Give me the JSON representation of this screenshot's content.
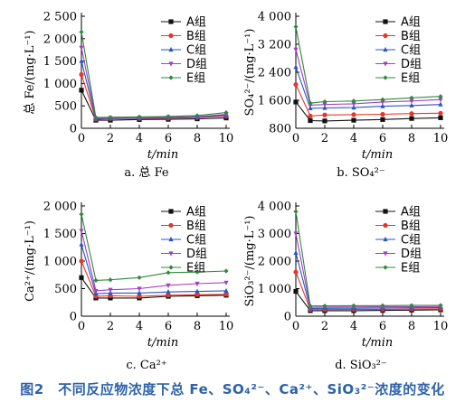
{
  "figure_caption": "图2　不同反应物浓度下总 Fe、SO₄²⁻、Ca²⁺、SiO₃²⁻浓度的变化",
  "series_colors": [
    "#111111",
    "#e8372a",
    "#2b55c6",
    "#a43fc0",
    "#2f8a3c"
  ],
  "chart_data": [
    {
      "type": "line",
      "caption": "a. 总 Fe",
      "xlabel": "t/min",
      "ylabel": "总 Fe/(mg·L⁻¹)",
      "xlim": [
        0,
        10
      ],
      "ylim": [
        0,
        2500
      ],
      "xticks": [
        "0",
        "2",
        "4",
        "6",
        "8",
        "10"
      ],
      "yticks": [
        "0",
        "500",
        "1 000",
        "1 500",
        "2 000",
        "2 500"
      ],
      "x": [
        0,
        1,
        2,
        4,
        6,
        8,
        10
      ],
      "series": [
        {
          "name": "A组",
          "values": [
            850,
            180,
            180,
            195,
            200,
            210,
            230
          ]
        },
        {
          "name": "B组",
          "values": [
            1200,
            200,
            215,
            220,
            225,
            240,
            270
          ]
        },
        {
          "name": "C组",
          "values": [
            1500,
            210,
            220,
            225,
            235,
            250,
            290
          ]
        },
        {
          "name": "D组",
          "values": [
            1800,
            220,
            230,
            235,
            245,
            260,
            310
          ]
        },
        {
          "name": "E组",
          "values": [
            2150,
            240,
            245,
            255,
            265,
            285,
            350
          ]
        }
      ]
    },
    {
      "type": "line",
      "caption": "b. SO₄²⁻",
      "xlabel": "t/min",
      "ylabel": "SO₄²⁻/(mg·L⁻¹)",
      "xlim": [
        0,
        10
      ],
      "ylim": [
        800,
        4000
      ],
      "xticks": [
        "0",
        "2",
        "4",
        "6",
        "8",
        "10"
      ],
      "yticks": [
        "800",
        "1 600",
        "2 400",
        "3 200",
        "4 000"
      ],
      "x": [
        0,
        1,
        2,
        4,
        6,
        8,
        10
      ],
      "series": [
        {
          "name": "A组",
          "values": [
            1550,
            1020,
            1010,
            1030,
            1050,
            1080,
            1100
          ]
        },
        {
          "name": "B组",
          "values": [
            2050,
            1150,
            1180,
            1190,
            1200,
            1220,
            1230
          ]
        },
        {
          "name": "C组",
          "values": [
            2550,
            1370,
            1380,
            1390,
            1430,
            1450,
            1480
          ]
        },
        {
          "name": "D组",
          "values": [
            3050,
            1460,
            1480,
            1500,
            1550,
            1580,
            1620
          ]
        },
        {
          "name": "E组",
          "values": [
            3700,
            1520,
            1560,
            1580,
            1620,
            1670,
            1710
          ]
        }
      ]
    },
    {
      "type": "line",
      "caption": "c. Ca²⁺",
      "xlabel": "t/min",
      "ylabel": "Ca²⁺/(mg·L⁻¹)",
      "xlim": [
        0,
        10
      ],
      "ylim": [
        0,
        2000
      ],
      "xticks": [
        "0",
        "2",
        "4",
        "6",
        "8",
        "10"
      ],
      "yticks": [
        "0",
        "500",
        "1 000",
        "1 500",
        "2 000"
      ],
      "x": [
        0,
        1,
        2,
        4,
        6,
        8,
        10
      ],
      "series": [
        {
          "name": "A组",
          "values": [
            700,
            330,
            330,
            330,
            360,
            370,
            380
          ]
        },
        {
          "name": "B组",
          "values": [
            1000,
            360,
            370,
            360,
            380,
            390,
            395
          ]
        },
        {
          "name": "C组",
          "values": [
            1300,
            410,
            420,
            420,
            440,
            450,
            460
          ]
        },
        {
          "name": "D组",
          "values": [
            1550,
            460,
            480,
            500,
            560,
            590,
            610
          ]
        },
        {
          "name": "E组",
          "values": [
            1850,
            650,
            660,
            700,
            790,
            800,
            820
          ]
        }
      ]
    },
    {
      "type": "line",
      "caption": "d. SiO₃²⁻",
      "xlabel": "t/min",
      "ylabel": "SiO₃²⁻/(mg·L⁻¹)",
      "xlim": [
        0,
        10
      ],
      "ylim": [
        0,
        4000
      ],
      "xticks": [
        "0",
        "2",
        "4",
        "6",
        "8",
        "10"
      ],
      "yticks": [
        "0",
        "1 000",
        "2 000",
        "3 000",
        "4 000"
      ],
      "x": [
        0,
        1,
        2,
        4,
        6,
        8,
        10
      ],
      "series": [
        {
          "name": "A组",
          "values": [
            900,
            200,
            200,
            200,
            210,
            220,
            230
          ]
        },
        {
          "name": "B组",
          "values": [
            1600,
            240,
            240,
            245,
            250,
            260,
            270
          ]
        },
        {
          "name": "C组",
          "values": [
            2300,
            280,
            285,
            290,
            300,
            305,
            310
          ]
        },
        {
          "name": "D组",
          "values": [
            3000,
            320,
            330,
            335,
            340,
            345,
            350
          ]
        },
        {
          "name": "E组",
          "values": [
            3800,
            370,
            375,
            380,
            385,
            390,
            395
          ]
        }
      ]
    }
  ]
}
